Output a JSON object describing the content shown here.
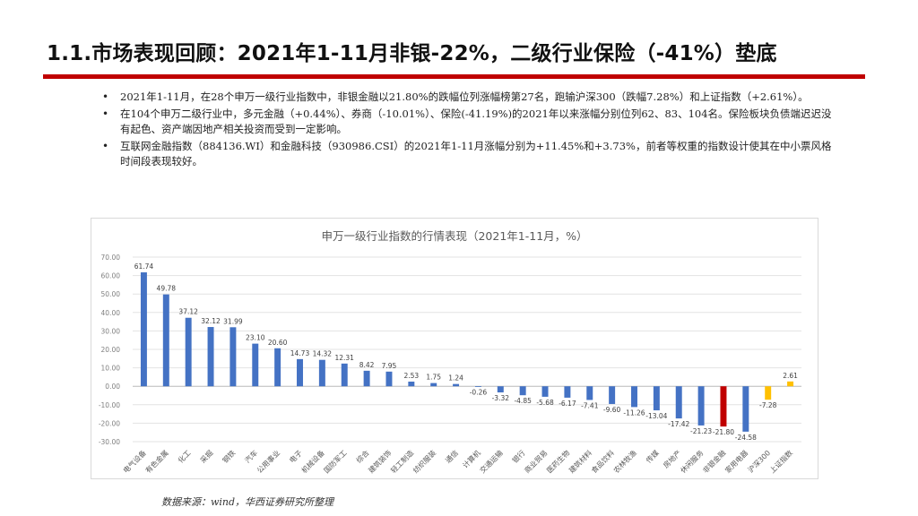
{
  "slide": {
    "title": "1.1.市场表现回顾：2021年1-11月非银-22%，二级行业保险（-41%）垫底",
    "bullets": [
      "2021年1-11月，在28个申万一级行业指数中，非银金融以21.80%的跌幅位列涨幅榜第27名，跑输沪深300（跌幅7.28%）和上证指数（+2.61%）。",
      "在104个申万二级行业中，多元金融（+0.44%）、券商（-10.01%）、保险(-41.19%)的2021年以来涨幅分别位列62、83、104名。保险板块负债端迟迟没有起色、资产端因地产相关投资而受到一定影响。",
      "互联网金融指数（884136.WI）和金融科技（930986.CSI）的2021年1-11月涨幅分别为+11.45%和+3.73%，前者等权重的指数设计使其在中小票风格时间段表现较好。"
    ],
    "source": "数据来源：wind，华西证券研究所整理"
  },
  "colors": {
    "accent_rule": "#c00000",
    "bar_default": "#4472c4",
    "bar_highlight": "#c00000",
    "bar_benchmark": "#ffc000"
  },
  "chart_data": {
    "type": "bar",
    "title": "申万一级行业指数的行情表现（2021年1-11月，%）",
    "xlabel": "",
    "ylabel": "",
    "ylim": [
      -30,
      70
    ],
    "yticks": [
      "70.00",
      "60.00",
      "50.00",
      "40.00",
      "30.00",
      "20.00",
      "10.00",
      "0.00",
      "-10.00",
      "-20.00",
      "-30.00"
    ],
    "grid": true,
    "categories": [
      "电气设备",
      "有色金属",
      "化工",
      "采掘",
      "钢铁",
      "汽车",
      "公用事业",
      "电子",
      "机械设备",
      "国防军工",
      "综合",
      "建筑装饰",
      "轻工制造",
      "纺织服装",
      "通信",
      "计算机",
      "交通运输",
      "银行",
      "商业贸易",
      "医药生物",
      "建筑材料",
      "食品饮料",
      "农林牧渔",
      "传媒",
      "房地产",
      "休闲服务",
      "非银金融",
      "家用电器",
      "沪深300",
      "上证指数"
    ],
    "values": [
      61.74,
      49.78,
      37.12,
      32.12,
      31.99,
      23.1,
      20.6,
      14.73,
      14.32,
      12.31,
      8.42,
      7.95,
      2.53,
      1.75,
      1.24,
      -0.26,
      -3.32,
      -4.85,
      -5.68,
      -6.17,
      -7.41,
      -9.6,
      -11.26,
      -13.04,
      -17.42,
      -21.23,
      -21.8,
      -24.58,
      -7.28,
      2.61
    ],
    "labels": [
      "61.74",
      "49.78",
      "37.12",
      "32.12",
      "31.99",
      "23.10",
      "20.60",
      "14.73",
      "14.32",
      "12.31",
      "8.42",
      "7.95",
      "2.53",
      "1.75",
      "1.24",
      "-0.26",
      "-3.32",
      "-4.85",
      "-5.68",
      "-6.17",
      "-7.41",
      "-9.60",
      "-11.26",
      "-13.04",
      "-17.42",
      "-21.23",
      "-21.80",
      "-24.58",
      "-7.28",
      "2.61"
    ],
    "highlight": [
      "非银金融"
    ],
    "benchmarks": [
      "沪深300",
      "上证指数"
    ]
  }
}
